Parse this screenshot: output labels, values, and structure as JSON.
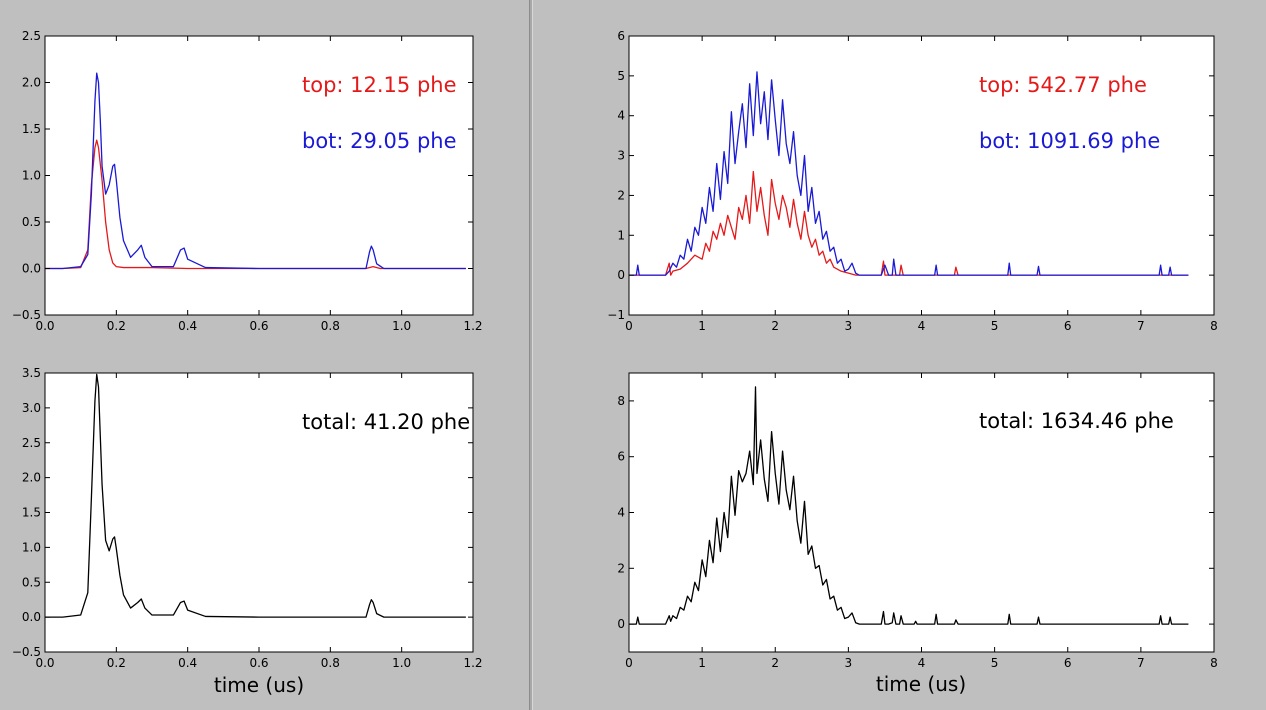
{
  "colors": {
    "background": "#bfbfbf",
    "top": "#e41a1a",
    "bot": "#1a1ad6",
    "total": "#000000"
  },
  "panels": [
    {
      "id": "left-top-panel",
      "annotations": [
        {
          "text": "top: 12.15 phe",
          "color": "#e41a1a"
        },
        {
          "text": "bot: 29.05 phe",
          "color": "#1a1ad6"
        }
      ],
      "xlabel": ""
    },
    {
      "id": "right-top-panel",
      "annotations": [
        {
          "text": "top: 542.77 phe",
          "color": "#e41a1a"
        },
        {
          "text": "bot: 1091.69 phe",
          "color": "#1a1ad6"
        }
      ],
      "xlabel": ""
    },
    {
      "id": "left-bottom-panel",
      "annotations": [
        {
          "text": "total: 41.20 phe",
          "color": "#000000"
        }
      ],
      "xlabel": "time (us)"
    },
    {
      "id": "right-bottom-panel",
      "annotations": [
        {
          "text": "total: 1634.46 phe",
          "color": "#000000"
        }
      ],
      "xlabel": "time (us)"
    }
  ],
  "chart_data": [
    {
      "type": "line",
      "xlim": [
        0.0,
        1.2
      ],
      "ylim": [
        -0.5,
        2.5
      ],
      "xticks": [
        0.0,
        0.2,
        0.4,
        0.6,
        0.8,
        1.0,
        1.2
      ],
      "xtick_labels": [
        "0.0",
        "0.2",
        "0.4",
        "0.6",
        "0.8",
        "1.0",
        "1.2"
      ],
      "yticks": [
        -0.5,
        0.0,
        0.5,
        1.0,
        1.5,
        2.0,
        2.5
      ],
      "ytick_labels": [
        "−0.5",
        "0.0",
        "0.5",
        "1.0",
        "1.5",
        "2.0",
        "2.5"
      ],
      "grid": false,
      "series": [
        {
          "color": "#e41a1a",
          "x": [
            0.0,
            0.05,
            0.1,
            0.12,
            0.13,
            0.14,
            0.145,
            0.15,
            0.16,
            0.17,
            0.18,
            0.19,
            0.2,
            0.22,
            0.25,
            0.3,
            0.4,
            0.6,
            0.8,
            0.9,
            0.92,
            0.94,
            1.0,
            1.18
          ],
          "y": [
            0.0,
            0.0,
            0.01,
            0.2,
            0.9,
            1.3,
            1.38,
            1.3,
            0.95,
            0.5,
            0.2,
            0.06,
            0.02,
            0.01,
            0.01,
            0.01,
            0.0,
            0.0,
            0.0,
            0.0,
            0.02,
            0.0,
            0.0,
            0.0
          ]
        },
        {
          "color": "#1a1ad6",
          "x": [
            0.0,
            0.05,
            0.1,
            0.12,
            0.13,
            0.14,
            0.145,
            0.15,
            0.155,
            0.16,
            0.17,
            0.18,
            0.19,
            0.195,
            0.2,
            0.21,
            0.22,
            0.24,
            0.26,
            0.27,
            0.28,
            0.3,
            0.36,
            0.38,
            0.39,
            0.4,
            0.45,
            0.6,
            0.8,
            0.9,
            0.91,
            0.915,
            0.92,
            0.93,
            0.95,
            1.0,
            1.18
          ],
          "y": [
            0.0,
            0.0,
            0.02,
            0.15,
            0.8,
            1.8,
            2.1,
            2.0,
            1.6,
            1.1,
            0.8,
            0.9,
            1.1,
            1.12,
            0.95,
            0.55,
            0.3,
            0.12,
            0.2,
            0.25,
            0.12,
            0.02,
            0.02,
            0.2,
            0.22,
            0.1,
            0.01,
            0.0,
            0.0,
            0.0,
            0.18,
            0.24,
            0.2,
            0.05,
            0.0,
            0.0,
            0.0
          ]
        }
      ]
    },
    {
      "type": "line",
      "xlim": [
        0,
        8
      ],
      "ylim": [
        -1,
        6
      ],
      "xticks": [
        0,
        1,
        2,
        3,
        4,
        5,
        6,
        7,
        8
      ],
      "xtick_labels": [
        "0",
        "1",
        "2",
        "3",
        "4",
        "5",
        "6",
        "7",
        "8"
      ],
      "yticks": [
        -1,
        0,
        1,
        2,
        3,
        4,
        5,
        6
      ],
      "ytick_labels": [
        "−1",
        "0",
        "1",
        "2",
        "3",
        "4",
        "5",
        "6"
      ],
      "grid": false,
      "series": [
        {
          "color": "#e41a1a",
          "x": [
            0.0,
            0.5,
            0.55,
            0.57,
            0.6,
            0.7,
            0.8,
            0.9,
            1.0,
            1.05,
            1.1,
            1.15,
            1.2,
            1.25,
            1.3,
            1.35,
            1.4,
            1.45,
            1.5,
            1.55,
            1.6,
            1.65,
            1.7,
            1.75,
            1.8,
            1.85,
            1.9,
            1.95,
            2.0,
            2.05,
            2.1,
            2.15,
            2.2,
            2.25,
            2.3,
            2.35,
            2.4,
            2.45,
            2.5,
            2.55,
            2.6,
            2.65,
            2.7,
            2.75,
            2.8,
            2.9,
            3.0,
            3.1,
            3.45,
            3.48,
            3.5,
            3.7,
            3.72,
            3.75,
            4.45,
            4.47,
            4.5,
            7.65
          ],
          "y": [
            0.0,
            0.0,
            0.3,
            0.0,
            0.1,
            0.15,
            0.3,
            0.5,
            0.4,
            0.8,
            0.6,
            1.1,
            0.9,
            1.3,
            1.0,
            1.5,
            1.2,
            0.9,
            1.7,
            1.4,
            2.0,
            1.3,
            2.6,
            1.6,
            2.2,
            1.5,
            1.0,
            2.4,
            1.8,
            1.4,
            2.0,
            1.7,
            1.2,
            1.9,
            1.3,
            0.9,
            1.6,
            1.0,
            0.7,
            0.9,
            0.5,
            0.6,
            0.3,
            0.4,
            0.2,
            0.1,
            0.05,
            0.0,
            0.0,
            0.35,
            0.0,
            0.0,
            0.25,
            0.0,
            0.0,
            0.2,
            0.0,
            0.0
          ]
        },
        {
          "color": "#1a1ad6",
          "x": [
            0.0,
            0.1,
            0.12,
            0.14,
            0.5,
            0.55,
            0.6,
            0.65,
            0.7,
            0.75,
            0.8,
            0.85,
            0.9,
            0.95,
            1.0,
            1.05,
            1.1,
            1.15,
            1.2,
            1.25,
            1.3,
            1.35,
            1.4,
            1.45,
            1.5,
            1.55,
            1.6,
            1.65,
            1.7,
            1.75,
            1.8,
            1.85,
            1.9,
            1.95,
            2.0,
            2.05,
            2.1,
            2.15,
            2.2,
            2.25,
            2.3,
            2.35,
            2.4,
            2.45,
            2.5,
            2.55,
            2.6,
            2.65,
            2.7,
            2.75,
            2.8,
            2.85,
            2.9,
            2.95,
            3.0,
            3.05,
            3.1,
            3.15,
            3.45,
            3.5,
            3.55,
            3.6,
            3.62,
            3.65,
            4.18,
            4.2,
            4.22,
            5.18,
            5.2,
            5.22,
            5.58,
            5.6,
            5.62,
            7.25,
            7.27,
            7.29,
            7.38,
            7.4,
            7.42,
            7.65
          ],
          "y": [
            0.0,
            0.0,
            0.25,
            0.0,
            0.0,
            0.1,
            0.3,
            0.2,
            0.5,
            0.4,
            0.9,
            0.6,
            1.2,
            1.0,
            1.7,
            1.3,
            2.2,
            1.6,
            2.8,
            1.9,
            3.1,
            2.3,
            4.1,
            2.8,
            3.6,
            4.3,
            3.2,
            4.8,
            3.5,
            5.1,
            3.8,
            4.6,
            3.4,
            4.9,
            3.9,
            3.0,
            4.4,
            3.3,
            2.8,
            3.6,
            2.5,
            2.0,
            3.0,
            1.6,
            2.2,
            1.3,
            1.6,
            0.9,
            1.1,
            0.6,
            0.7,
            0.3,
            0.4,
            0.1,
            0.15,
            0.3,
            0.05,
            0.0,
            0.0,
            0.25,
            0.0,
            0.0,
            0.4,
            0.0,
            0.0,
            0.25,
            0.0,
            0.0,
            0.3,
            0.0,
            0.0,
            0.22,
            0.0,
            0.0,
            0.25,
            0.0,
            0.0,
            0.2,
            0.0,
            0.0
          ]
        }
      ]
    },
    {
      "type": "line",
      "xlim": [
        0.0,
        1.2
      ],
      "ylim": [
        -0.5,
        3.5
      ],
      "xticks": [
        0.0,
        0.2,
        0.4,
        0.6,
        0.8,
        1.0,
        1.2
      ],
      "xtick_labels": [
        "0.0",
        "0.2",
        "0.4",
        "0.6",
        "0.8",
        "1.0",
        "1.2"
      ],
      "yticks": [
        -0.5,
        0.0,
        0.5,
        1.0,
        1.5,
        2.0,
        2.5,
        3.0,
        3.5
      ],
      "ytick_labels": [
        "−0.5",
        "0.0",
        "0.5",
        "1.0",
        "1.5",
        "2.0",
        "2.5",
        "3.0",
        "3.5"
      ],
      "grid": false,
      "series": [
        {
          "color": "#000000",
          "x": [
            0.0,
            0.05,
            0.1,
            0.12,
            0.13,
            0.14,
            0.145,
            0.15,
            0.155,
            0.16,
            0.17,
            0.18,
            0.19,
            0.195,
            0.2,
            0.21,
            0.22,
            0.24,
            0.26,
            0.27,
            0.28,
            0.3,
            0.36,
            0.38,
            0.39,
            0.4,
            0.45,
            0.6,
            0.8,
            0.9,
            0.91,
            0.915,
            0.92,
            0.93,
            0.95,
            1.0,
            1.18
          ],
          "y": [
            0.0,
            0.0,
            0.03,
            0.35,
            1.7,
            3.1,
            3.48,
            3.3,
            2.6,
            1.9,
            1.1,
            0.95,
            1.12,
            1.15,
            0.98,
            0.6,
            0.32,
            0.13,
            0.21,
            0.26,
            0.13,
            0.03,
            0.03,
            0.21,
            0.23,
            0.1,
            0.01,
            0.0,
            0.0,
            0.0,
            0.18,
            0.25,
            0.21,
            0.05,
            0.0,
            0.0,
            0.0
          ]
        }
      ]
    },
    {
      "type": "line",
      "xlim": [
        0,
        8
      ],
      "ylim": [
        -1,
        9
      ],
      "xticks": [
        0,
        1,
        2,
        3,
        4,
        5,
        6,
        7,
        8
      ],
      "xtick_labels": [
        "0",
        "1",
        "2",
        "3",
        "4",
        "5",
        "6",
        "7",
        "8"
      ],
      "yticks": [
        0,
        2,
        4,
        6,
        8
      ],
      "ytick_labels": [
        "0",
        "2",
        "4",
        "6",
        "8"
      ],
      "grid": false,
      "series": [
        {
          "color": "#000000",
          "x": [
            0.0,
            0.1,
            0.12,
            0.14,
            0.5,
            0.55,
            0.57,
            0.6,
            0.65,
            0.7,
            0.75,
            0.8,
            0.85,
            0.9,
            0.95,
            1.0,
            1.05,
            1.1,
            1.15,
            1.2,
            1.25,
            1.3,
            1.35,
            1.4,
            1.45,
            1.5,
            1.55,
            1.6,
            1.65,
            1.7,
            1.73,
            1.75,
            1.8,
            1.85,
            1.9,
            1.95,
            2.0,
            2.05,
            2.1,
            2.15,
            2.2,
            2.25,
            2.3,
            2.35,
            2.4,
            2.45,
            2.5,
            2.55,
            2.6,
            2.65,
            2.7,
            2.75,
            2.8,
            2.85,
            2.9,
            2.95,
            3.0,
            3.05,
            3.1,
            3.15,
            3.45,
            3.48,
            3.5,
            3.55,
            3.6,
            3.62,
            3.65,
            3.7,
            3.72,
            3.75,
            3.9,
            3.92,
            3.94,
            4.18,
            4.2,
            4.22,
            4.45,
            4.47,
            4.5,
            5.18,
            5.2,
            5.22,
            5.58,
            5.6,
            5.62,
            7.25,
            7.27,
            7.29,
            7.38,
            7.4,
            7.42,
            7.65
          ],
          "y": [
            0.0,
            0.0,
            0.25,
            0.0,
            0.0,
            0.3,
            0.1,
            0.3,
            0.2,
            0.6,
            0.5,
            1.0,
            0.8,
            1.5,
            1.2,
            2.3,
            1.7,
            3.0,
            2.2,
            3.8,
            2.6,
            4.0,
            3.1,
            5.3,
            3.9,
            5.5,
            5.1,
            5.4,
            6.2,
            5.0,
            8.5,
            5.4,
            6.6,
            5.2,
            4.4,
            6.9,
            5.4,
            4.3,
            6.2,
            4.8,
            4.1,
            5.3,
            3.7,
            2.9,
            4.4,
            2.5,
            2.8,
            2.0,
            2.1,
            1.4,
            1.6,
            0.9,
            1.0,
            0.5,
            0.6,
            0.2,
            0.25,
            0.4,
            0.05,
            0.0,
            0.0,
            0.45,
            0.0,
            0.0,
            0.05,
            0.4,
            0.0,
            0.0,
            0.3,
            0.0,
            0.0,
            0.1,
            0.0,
            0.0,
            0.35,
            0.0,
            0.0,
            0.15,
            0.0,
            0.0,
            0.35,
            0.0,
            0.0,
            0.25,
            0.0,
            0.0,
            0.3,
            0.0,
            0.0,
            0.25,
            0.0,
            0.0
          ]
        }
      ]
    }
  ]
}
